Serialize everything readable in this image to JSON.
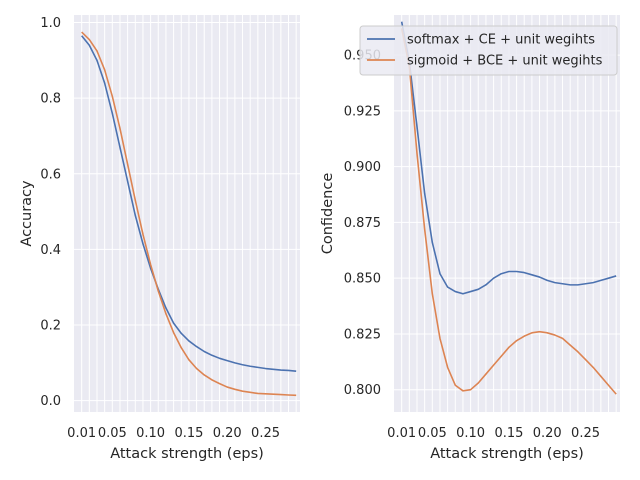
{
  "chart_data": [
    {
      "type": "line",
      "xlabel": "Attack strength (eps)",
      "ylabel": "Accuracy",
      "xlim": [
        0.0,
        0.295
      ],
      "ylim": [
        -0.03,
        1.02
      ],
      "xticks": [
        0.01,
        0.05,
        0.1,
        0.15,
        0.2,
        0.25
      ],
      "xtick_labels": [
        "0.01",
        "0.05",
        "0.10",
        "0.15",
        "0.20",
        "0.25"
      ],
      "yticks": [
        0.0,
        0.2,
        0.4,
        0.6,
        0.8,
        1.0
      ],
      "ytick_labels": [
        "0.0",
        "0.2",
        "0.4",
        "0.6",
        "0.8",
        "1.0"
      ],
      "grid": true,
      "x": [
        0.01,
        0.02,
        0.03,
        0.04,
        0.05,
        0.06,
        0.07,
        0.08,
        0.09,
        0.1,
        0.11,
        0.12,
        0.13,
        0.14,
        0.15,
        0.16,
        0.17,
        0.18,
        0.19,
        0.2,
        0.21,
        0.22,
        0.23,
        0.24,
        0.25,
        0.26,
        0.27,
        0.28,
        0.29
      ],
      "series": [
        {
          "name": "softmax + CE + unit wegihts",
          "color": "#4c72b0",
          "values": [
            0.965,
            0.94,
            0.9,
            0.84,
            0.76,
            0.67,
            0.58,
            0.49,
            0.415,
            0.35,
            0.295,
            0.245,
            0.205,
            0.178,
            0.158,
            0.143,
            0.13,
            0.12,
            0.112,
            0.106,
            0.1,
            0.095,
            0.091,
            0.088,
            0.085,
            0.083,
            0.081,
            0.08,
            0.078
          ]
        },
        {
          "name": "sigmoid + BCE + unit wegihts",
          "color": "#dd8452",
          "values": [
            0.975,
            0.955,
            0.925,
            0.875,
            0.805,
            0.72,
            0.625,
            0.53,
            0.44,
            0.36,
            0.29,
            0.23,
            0.18,
            0.14,
            0.108,
            0.085,
            0.068,
            0.055,
            0.045,
            0.036,
            0.03,
            0.025,
            0.022,
            0.019,
            0.018,
            0.017,
            0.016,
            0.015,
            0.014
          ]
        }
      ]
    },
    {
      "type": "line",
      "xlabel": "Attack strength (eps)",
      "ylabel": "Confidence",
      "xlim": [
        0.0,
        0.295
      ],
      "ylim": [
        0.79,
        0.968
      ],
      "xticks": [
        0.01,
        0.05,
        0.1,
        0.15,
        0.2,
        0.25
      ],
      "xtick_labels": [
        "0.01",
        "0.05",
        "0.10",
        "0.15",
        "0.20",
        "0.25"
      ],
      "yticks": [
        0.8,
        0.825,
        0.85,
        0.875,
        0.9,
        0.925,
        0.95
      ],
      "ytick_labels": [
        "0.800",
        "0.825",
        "0.850",
        "0.875",
        "0.900",
        "0.925",
        "0.950"
      ],
      "grid": true,
      "legend_position": "top-right",
      "x": [
        0.01,
        0.02,
        0.03,
        0.04,
        0.05,
        0.06,
        0.07,
        0.08,
        0.09,
        0.1,
        0.11,
        0.12,
        0.13,
        0.14,
        0.15,
        0.16,
        0.17,
        0.18,
        0.19,
        0.2,
        0.21,
        0.22,
        0.23,
        0.24,
        0.25,
        0.26,
        0.27,
        0.28,
        0.29
      ],
      "series": [
        {
          "name": "softmax + CE + unit wegihts",
          "color": "#4c72b0",
          "values": [
            0.965,
            0.947,
            0.918,
            0.888,
            0.866,
            0.852,
            0.846,
            0.844,
            0.843,
            0.844,
            0.845,
            0.847,
            0.85,
            0.852,
            0.853,
            0.853,
            0.8525,
            0.8515,
            0.8505,
            0.849,
            0.848,
            0.8475,
            0.847,
            0.847,
            0.8475,
            0.848,
            0.849,
            0.85,
            0.851
          ]
        },
        {
          "name": "sigmoid + BCE + unit wegihts",
          "color": "#dd8452",
          "values": [
            0.962,
            0.945,
            0.906,
            0.872,
            0.843,
            0.823,
            0.81,
            0.802,
            0.7995,
            0.8,
            0.803,
            0.807,
            0.811,
            0.815,
            0.819,
            0.822,
            0.824,
            0.8255,
            0.826,
            0.8255,
            0.8245,
            0.823,
            0.82,
            0.817,
            0.8135,
            0.81,
            0.806,
            0.802,
            0.798
          ]
        }
      ]
    }
  ]
}
